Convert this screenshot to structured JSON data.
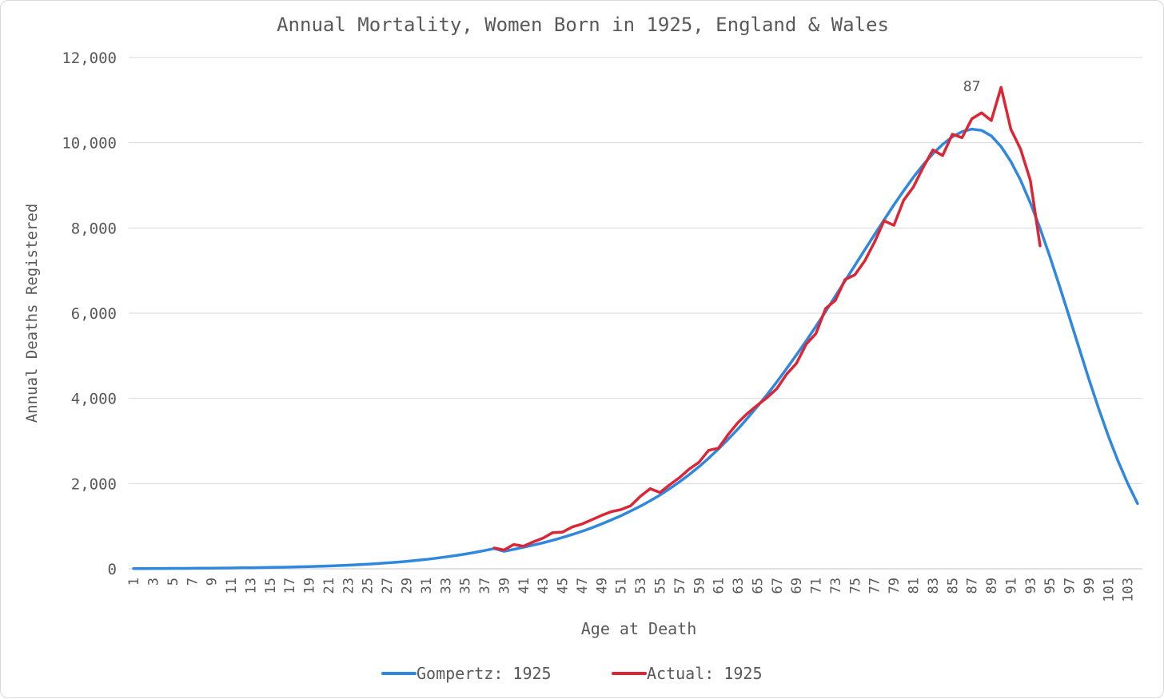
{
  "chart_data": {
    "type": "line",
    "title": "Annual Mortality, Women Born in 1925, England & Wales",
    "xlabel": "Age at Death",
    "ylabel": "Annual Deaths Registered",
    "ylim": [
      0,
      12000
    ],
    "y_ticks": [
      "0",
      "2,000",
      "4,000",
      "6,000",
      "8,000",
      "10,000",
      "12,000"
    ],
    "y_tick_values": [
      0,
      2000,
      4000,
      6000,
      8000,
      10000,
      12000
    ],
    "x_range": [
      1,
      104
    ],
    "x_tick_labels": [
      "1",
      "3",
      "5",
      "7",
      "9",
      "11",
      "13",
      "15",
      "17",
      "19",
      "21",
      "23",
      "25",
      "27",
      "29",
      "31",
      "33",
      "35",
      "37",
      "39",
      "41",
      "43",
      "45",
      "47",
      "49",
      "51",
      "53",
      "55",
      "57",
      "59",
      "61",
      "63",
      "65",
      "67",
      "69",
      "71",
      "73",
      "75",
      "77",
      "79",
      "81",
      "83",
      "85",
      "87",
      "89",
      "91",
      "93",
      "95",
      "97",
      "99",
      "101",
      "103"
    ],
    "grid": true,
    "legend_position": "bottom",
    "annotation": {
      "text": "87",
      "x": 87
    },
    "series": [
      {
        "name": "Gompertz: 1925",
        "color": "#2f88dd",
        "x": [
          1,
          2,
          3,
          4,
          5,
          6,
          7,
          8,
          9,
          10,
          11,
          12,
          13,
          14,
          15,
          16,
          17,
          18,
          19,
          20,
          21,
          22,
          23,
          24,
          25,
          26,
          27,
          28,
          29,
          30,
          31,
          32,
          33,
          34,
          35,
          36,
          37,
          38,
          39,
          40,
          41,
          42,
          43,
          44,
          45,
          46,
          47,
          48,
          49,
          50,
          51,
          52,
          53,
          54,
          55,
          56,
          57,
          58,
          59,
          60,
          61,
          62,
          63,
          64,
          65,
          66,
          67,
          68,
          69,
          70,
          71,
          72,
          73,
          74,
          75,
          76,
          77,
          78,
          79,
          80,
          81,
          82,
          83,
          84,
          85,
          86,
          87,
          88,
          89,
          90,
          91,
          92,
          93,
          94,
          95,
          96,
          97,
          98,
          99,
          100,
          101,
          102,
          103,
          104
        ],
        "values": [
          6,
          6,
          7,
          8,
          9,
          10,
          11,
          13,
          15,
          17,
          19,
          22,
          25,
          28,
          32,
          36,
          40,
          46,
          52,
          58,
          66,
          75,
          85,
          96,
          108,
          122,
          138,
          156,
          175,
          197,
          220,
          248,
          278,
          310,
          345,
          385,
          428,
          475,
          410,
          455,
          505,
          557,
          610,
          670,
          735,
          805,
          880,
          960,
          1050,
          1145,
          1245,
          1355,
          1470,
          1595,
          1730,
          1880,
          2040,
          2210,
          2395,
          2595,
          2810,
          3040,
          3280,
          3540,
          3810,
          4090,
          4390,
          4700,
          5020,
          5350,
          5690,
          6040,
          6400,
          6760,
          7120,
          7480,
          7840,
          8190,
          8540,
          8870,
          9190,
          9480,
          9740,
          9960,
          10140,
          10260,
          10320,
          10290,
          10160,
          9910,
          9560,
          9120,
          8590,
          7990,
          7330,
          6630,
          5910,
          5180,
          4460,
          3770,
          3120,
          2530,
          2000,
          1530
        ]
      },
      {
        "name": "Actual: 1925",
        "color": "#dc2635",
        "x": [
          38,
          39,
          40,
          41,
          42,
          43,
          44,
          45,
          46,
          47,
          48,
          49,
          50,
          51,
          52,
          53,
          54,
          55,
          56,
          57,
          58,
          59,
          60,
          61,
          62,
          63,
          64,
          65,
          66,
          67,
          68,
          69,
          70,
          71,
          72,
          73,
          74,
          75,
          76,
          77,
          78,
          79,
          80,
          81,
          82,
          83,
          84,
          85,
          86,
          87,
          88,
          89,
          90,
          91,
          92,
          93,
          94
        ],
        "values": [
          490,
          440,
          570,
          530,
          630,
          720,
          850,
          860,
          980,
          1050,
          1150,
          1250,
          1340,
          1390,
          1480,
          1700,
          1880,
          1790,
          1970,
          2140,
          2340,
          2500,
          2780,
          2830,
          3150,
          3430,
          3650,
          3840,
          4020,
          4230,
          4570,
          4820,
          5270,
          5520,
          6110,
          6300,
          6790,
          6900,
          7220,
          7660,
          8170,
          8060,
          8650,
          8960,
          9420,
          9830,
          9700,
          10200,
          10120,
          10560,
          10700,
          10520,
          11300,
          10320,
          9850,
          9120,
          7580
        ]
      }
    ]
  }
}
